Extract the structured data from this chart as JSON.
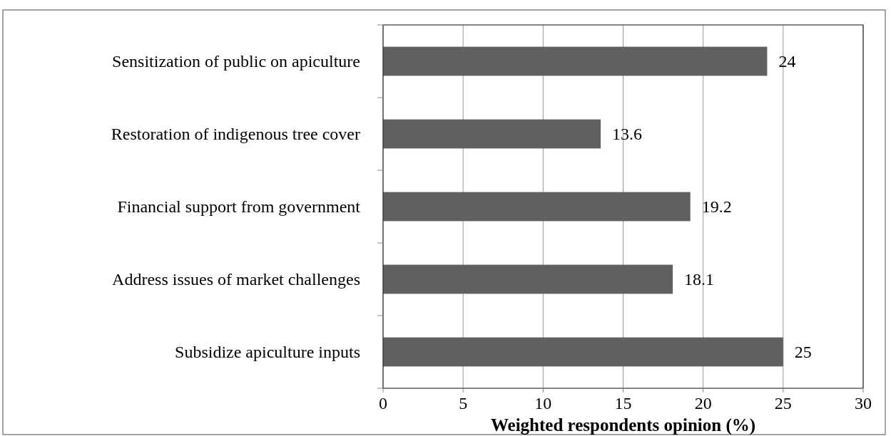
{
  "chart_data": {
    "type": "bar",
    "orientation": "horizontal",
    "xlabel": "Weighted respondents opinion (%)",
    "categories": [
      "Sensitization of public on apiculture",
      "Restoration of indigenous tree cover",
      "Financial support from government",
      "Address issues of market challenges",
      "Subsidize apiculture inputs"
    ],
    "values": [
      24,
      13.6,
      19.2,
      18.1,
      25
    ],
    "color": "#606060",
    "data_labels": true,
    "xlim": [
      0,
      30
    ],
    "xticks": [
      0,
      5,
      10,
      15,
      20,
      25,
      30
    ],
    "grid": "x"
  }
}
